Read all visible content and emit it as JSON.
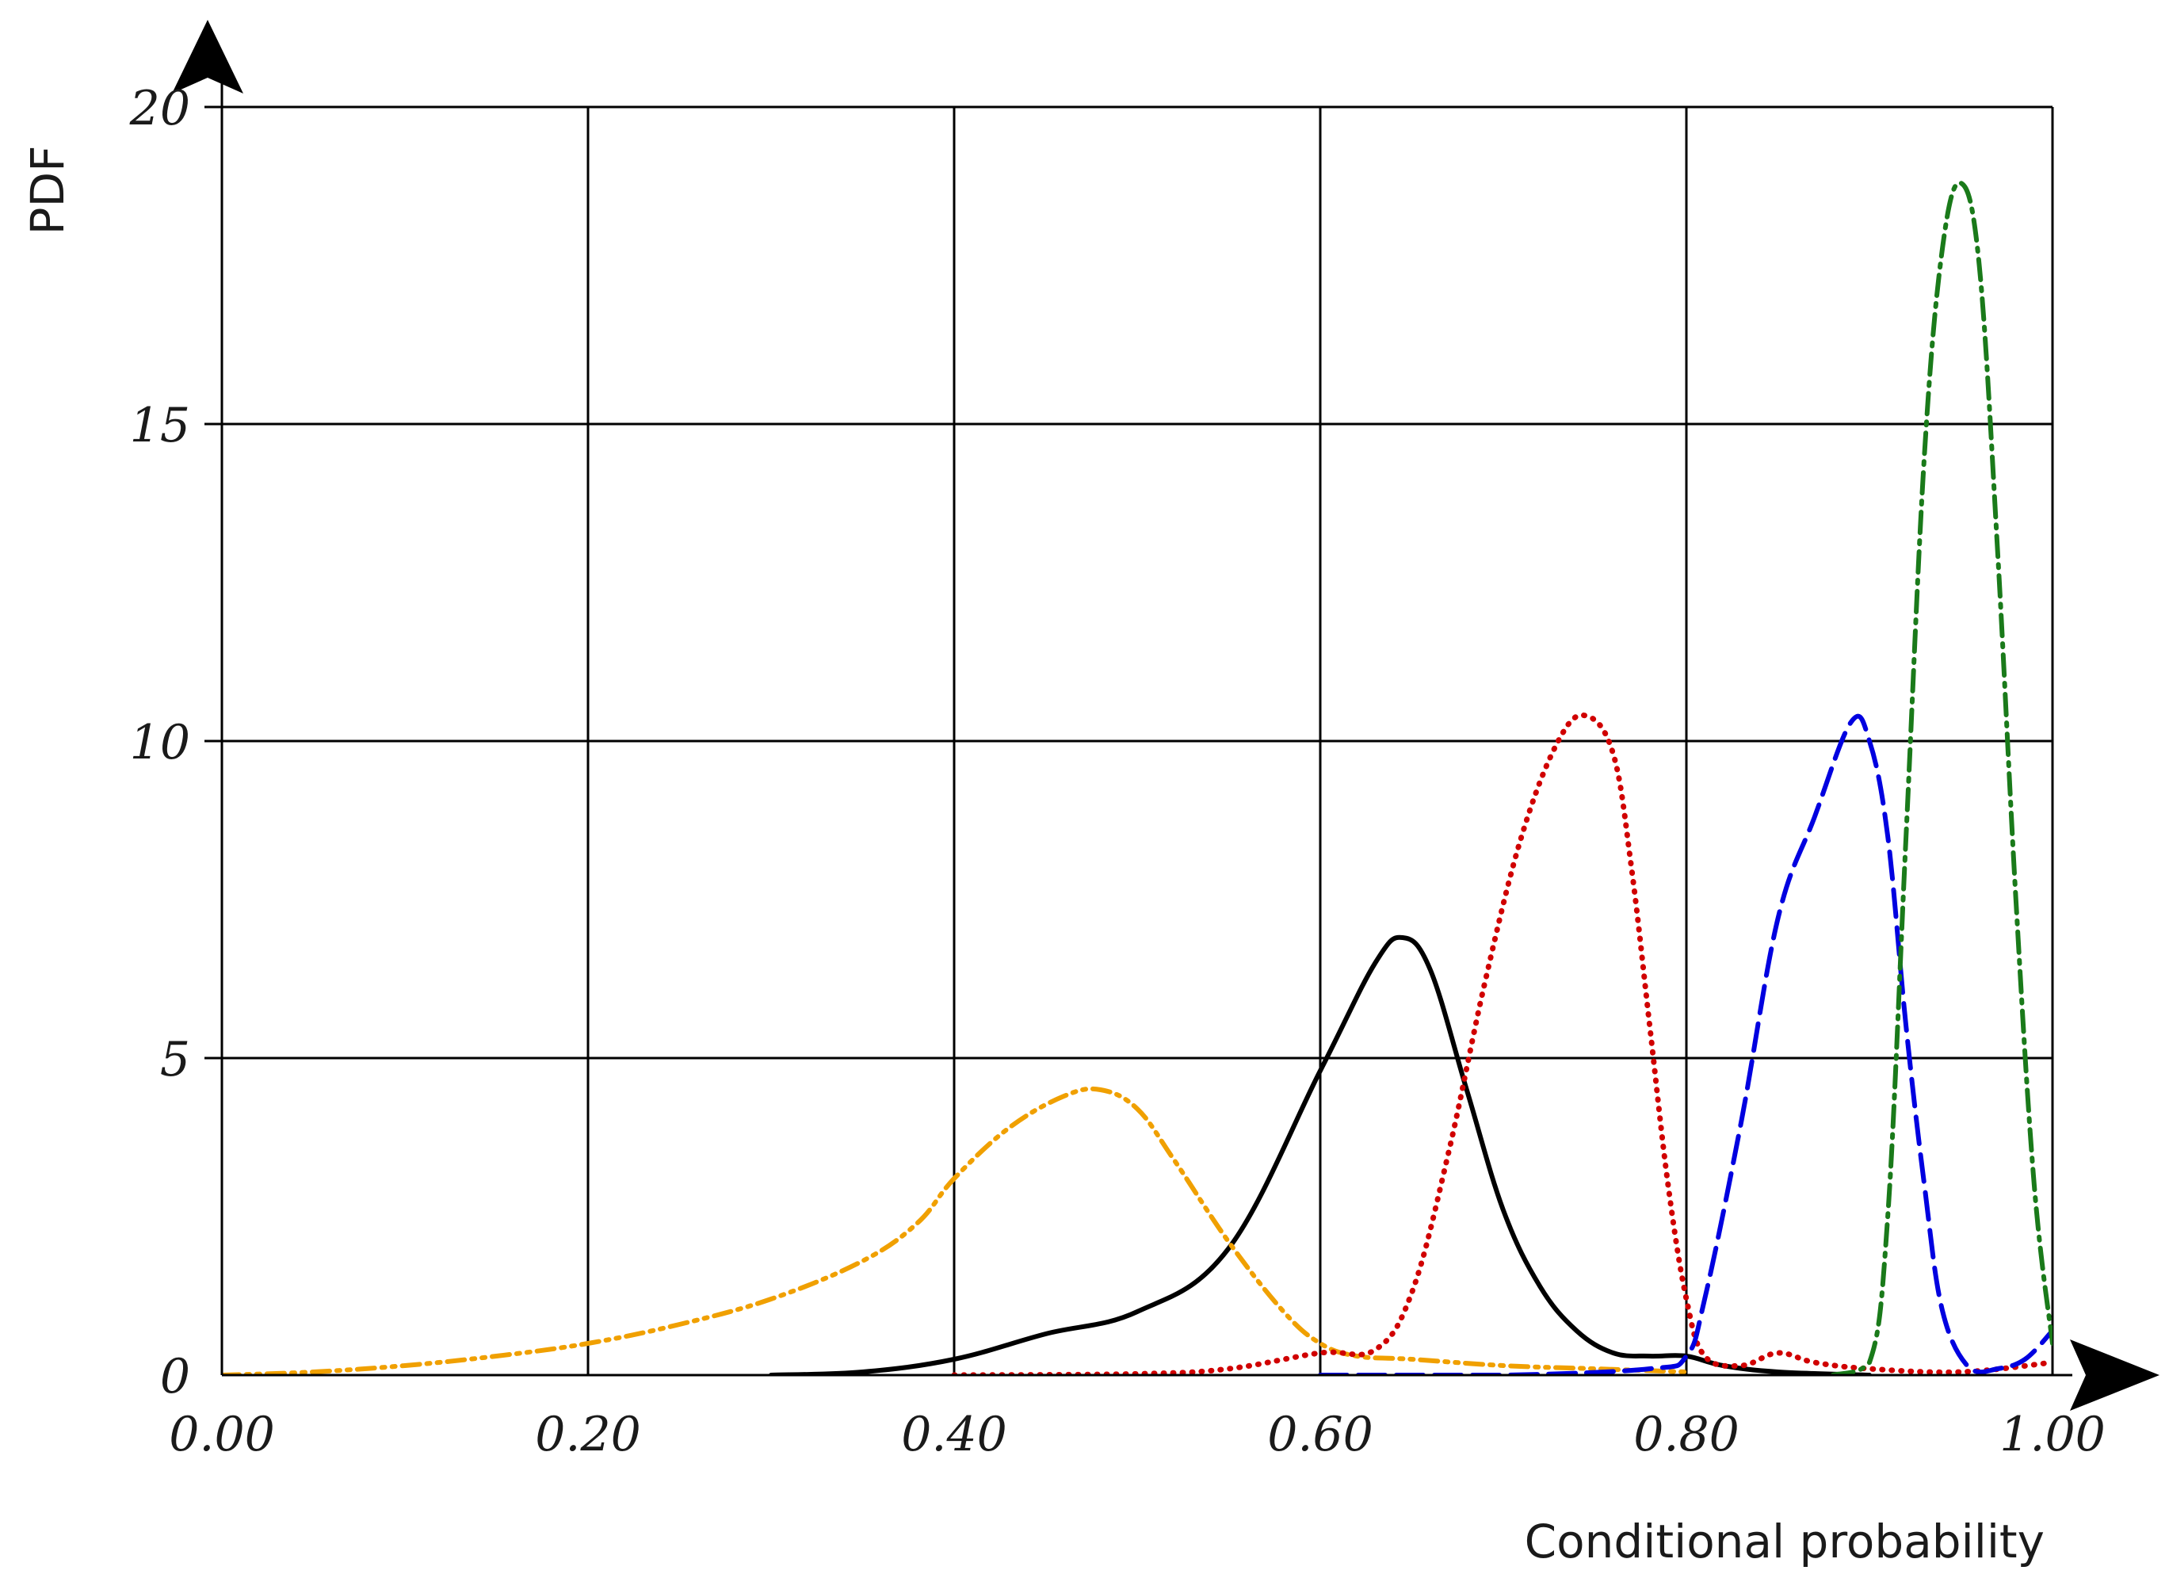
{
  "chart_data": {
    "type": "line",
    "title": "",
    "xlabel": "Conditional probability",
    "ylabel": "PDF",
    "xlim": [
      0,
      1
    ],
    "ylim": [
      0,
      20
    ],
    "x_ticks": [
      "0.00",
      "0.20",
      "0.40",
      "0.60",
      "0.80",
      "1.00"
    ],
    "y_ticks": [
      "0",
      "5",
      "10",
      "15",
      "20"
    ],
    "grid": true,
    "legend": "none",
    "series": [
      {
        "color": "#000000",
        "dash": "solid",
        "x": [
          0.3,
          0.35,
          0.4,
          0.45,
          0.5,
          0.55,
          0.6,
          0.63,
          0.645,
          0.66,
          0.68,
          0.7,
          0.72,
          0.74,
          0.76,
          0.78,
          0.8,
          0.82,
          0.85,
          0.9
        ],
        "y": [
          0.0,
          0.05,
          0.25,
          0.65,
          1.0,
          2.0,
          4.8,
          6.5,
          6.9,
          6.4,
          4.5,
          2.6,
          1.4,
          0.7,
          0.35,
          0.3,
          0.3,
          0.15,
          0.05,
          0.0
        ]
      },
      {
        "color": "#f0a000",
        "dash": "dash-dot-dot",
        "x": [
          0.0,
          0.05,
          0.1,
          0.15,
          0.2,
          0.25,
          0.3,
          0.35,
          0.38,
          0.4,
          0.43,
          0.46,
          0.48,
          0.5,
          0.52,
          0.55,
          0.58,
          0.6,
          0.62,
          0.65,
          0.7,
          0.75,
          0.8
        ],
        "y": [
          0.0,
          0.05,
          0.15,
          0.3,
          0.5,
          0.8,
          1.2,
          1.8,
          2.4,
          3.1,
          3.9,
          4.4,
          4.5,
          4.2,
          3.4,
          2.1,
          1.0,
          0.5,
          0.3,
          0.25,
          0.15,
          0.1,
          0.05
        ]
      },
      {
        "color": "#d00000",
        "dash": "dotted",
        "x": [
          0.4,
          0.5,
          0.55,
          0.6,
          0.63,
          0.65,
          0.67,
          0.69,
          0.71,
          0.73,
          0.745,
          0.76,
          0.77,
          0.78,
          0.79,
          0.8,
          0.81,
          0.83,
          0.85,
          0.87,
          0.9,
          0.95,
          1.0
        ],
        "y": [
          0.0,
          0.02,
          0.1,
          0.35,
          0.4,
          1.3,
          3.5,
          6.2,
          8.5,
          10.0,
          10.4,
          9.8,
          8.0,
          5.5,
          3.0,
          1.2,
          0.3,
          0.15,
          0.35,
          0.2,
          0.1,
          0.05,
          0.2
        ]
      },
      {
        "color": "#0000e0",
        "dash": "dashed",
        "x": [
          0.6,
          0.7,
          0.78,
          0.8,
          0.81,
          0.83,
          0.85,
          0.87,
          0.89,
          0.9,
          0.91,
          0.92,
          0.93,
          0.94,
          0.955,
          0.97,
          0.985,
          1.0
        ],
        "y": [
          0.0,
          0.0,
          0.1,
          0.3,
          1.2,
          4.0,
          7.2,
          8.8,
          10.3,
          10.0,
          8.5,
          5.5,
          3.0,
          1.0,
          0.1,
          0.1,
          0.25,
          0.7
        ]
      },
      {
        "color": "#1a7a1a",
        "dash": "dash-dot",
        "x": [
          0.88,
          0.9,
          0.91,
          0.92,
          0.93,
          0.94,
          0.95,
          0.96,
          0.97,
          0.98,
          0.99,
          1.0
        ],
        "y": [
          0.0,
          0.2,
          2.5,
          8.5,
          14.5,
          17.8,
          18.8,
          17.5,
          13.0,
          7.5,
          3.0,
          0.5
        ]
      }
    ]
  }
}
